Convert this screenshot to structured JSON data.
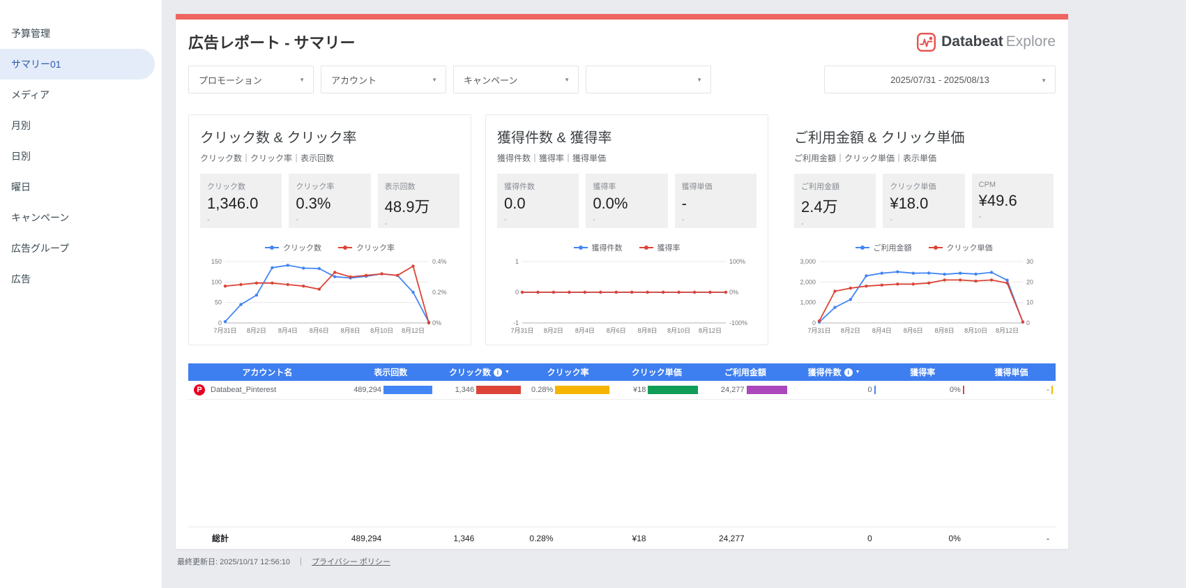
{
  "sidebar": {
    "items": [
      {
        "label": "予算管理",
        "selected": false
      },
      {
        "label": "サマリー01",
        "selected": true
      },
      {
        "label": "メディア",
        "selected": false
      },
      {
        "label": "月別",
        "selected": false
      },
      {
        "label": "日別",
        "selected": false
      },
      {
        "label": "曜日",
        "selected": false
      },
      {
        "label": "キャンペーン",
        "selected": false
      },
      {
        "label": "広告グループ",
        "selected": false
      },
      {
        "label": "広告",
        "selected": false
      }
    ]
  },
  "header": {
    "title": "広告レポート - サマリー",
    "brand_name": "Databeat",
    "brand_suffix": "Explore",
    "brand_color": "#e8504e"
  },
  "filters": {
    "dropdowns": [
      {
        "label": "プロモーション"
      },
      {
        "label": "アカウント"
      },
      {
        "label": "キャンペーン"
      },
      {
        "label": ""
      }
    ],
    "date_range": "2025/07/31 - 2025/08/13"
  },
  "cards": [
    {
      "title": "クリック数 & クリック率",
      "subtitle": "クリック数｜クリック率｜表示回数",
      "stats": [
        {
          "label": "クリック数",
          "value": "1,346.0",
          "delta": "-"
        },
        {
          "label": "クリック率",
          "value": "0.3%",
          "delta": "-"
        },
        {
          "label": "表示回数",
          "value": "48.9万",
          "delta": "-"
        }
      ]
    },
    {
      "title": "獲得件数 & 獲得率",
      "subtitle": "獲得件数｜獲得率｜獲得単価",
      "stats": [
        {
          "label": "獲得件数",
          "value": "0.0",
          "delta": "-"
        },
        {
          "label": "獲得率",
          "value": "0.0%",
          "delta": "-"
        },
        {
          "label": "獲得単価",
          "value": "-",
          "delta": "-"
        }
      ]
    },
    {
      "title": "ご利用金額 & クリック単価",
      "subtitle": "ご利用金額｜クリック単価｜表示単価",
      "stats": [
        {
          "label": "ご利用金額",
          "value": "2.4万",
          "delta": "-"
        },
        {
          "label": "クリック単価",
          "value": "¥18.0",
          "delta": "-"
        },
        {
          "label": "CPM",
          "value": "¥49.6",
          "delta": "-"
        }
      ]
    }
  ],
  "chart_data": [
    {
      "type": "line",
      "title": "クリック数 & クリック率",
      "x": [
        "7月31日",
        "8月1日",
        "8月2日",
        "8月3日",
        "8月4日",
        "8月5日",
        "8月6日",
        "8月7日",
        "8月8日",
        "8月9日",
        "8月10日",
        "8月11日",
        "8月12日",
        "8月13日"
      ],
      "x_label_every": 2,
      "left_axis": {
        "min": 0,
        "max": 150,
        "ticks": [
          "0",
          "50",
          "100",
          "150"
        ]
      },
      "right_axis": {
        "min": 0,
        "max": 0.4,
        "ticks": [
          "0%",
          "0.2%",
          "0.4%"
        ]
      },
      "series": [
        {
          "name": "クリック数",
          "axis": "left",
          "color": "#4285f4",
          "values": [
            3,
            45,
            68,
            135,
            141,
            134,
            133,
            113,
            110,
            114,
            120,
            116,
            75,
            2
          ]
        },
        {
          "name": "クリック率",
          "axis": "right",
          "color": "#db4437",
          "values": [
            0.24,
            0.25,
            0.26,
            0.26,
            0.25,
            0.24,
            0.22,
            0.33,
            0.3,
            0.31,
            0.32,
            0.31,
            0.37,
            0.0
          ]
        }
      ]
    },
    {
      "type": "line",
      "title": "獲得件数 & 獲得率",
      "x": [
        "7月31日",
        "8月1日",
        "8月2日",
        "8月3日",
        "8月4日",
        "8月5日",
        "8月6日",
        "8月7日",
        "8月8日",
        "8月9日",
        "8月10日",
        "8月11日",
        "8月12日",
        "8月13日"
      ],
      "x_label_every": 2,
      "left_axis": {
        "min": -1,
        "max": 1,
        "ticks": [
          "-1",
          "0",
          "1"
        ]
      },
      "right_axis": {
        "min": -100,
        "max": 100,
        "ticks": [
          "-100%",
          "0%",
          "100%"
        ]
      },
      "series": [
        {
          "name": "獲得件数",
          "axis": "left",
          "color": "#4285f4",
          "values": [
            0,
            0,
            0,
            0,
            0,
            0,
            0,
            0,
            0,
            0,
            0,
            0,
            0,
            0
          ]
        },
        {
          "name": "獲得率",
          "axis": "right",
          "color": "#db4437",
          "values": [
            0,
            0,
            0,
            0,
            0,
            0,
            0,
            0,
            0,
            0,
            0,
            0,
            0,
            0
          ]
        }
      ]
    },
    {
      "type": "line",
      "title": "ご利用金額 & クリック単価",
      "x": [
        "7月31日",
        "8月1日",
        "8月2日",
        "8月3日",
        "8月4日",
        "8月5日",
        "8月6日",
        "8月7日",
        "8月8日",
        "8月9日",
        "8月10日",
        "8月11日",
        "8月12日",
        "8月13日"
      ],
      "x_label_every": 2,
      "left_axis": {
        "min": 0,
        "max": 3000,
        "ticks": [
          "0",
          "1,000",
          "2,000",
          "3,000"
        ]
      },
      "right_axis": {
        "min": 0,
        "max": 30,
        "ticks": [
          "0",
          "10",
          "20",
          "30"
        ]
      },
      "series": [
        {
          "name": "ご利用金額",
          "axis": "left",
          "color": "#4285f4",
          "values": [
            40,
            760,
            1150,
            2300,
            2430,
            2500,
            2430,
            2440,
            2380,
            2430,
            2390,
            2470,
            2090,
            40
          ]
        },
        {
          "name": "クリック単価",
          "axis": "right",
          "color": "#db4437",
          "values": [
            1,
            15.5,
            17,
            18,
            18.5,
            19,
            19,
            19.5,
            21,
            21,
            20.5,
            21,
            19.5,
            0.5
          ]
        }
      ]
    }
  ],
  "table": {
    "columns": [
      {
        "label": "アカウント名"
      },
      {
        "label": "表示回数",
        "color": "#4285f4"
      },
      {
        "label": "クリック数",
        "color": "#db4437",
        "info": true,
        "sortable": true
      },
      {
        "label": "クリック率",
        "color": "#f4b400"
      },
      {
        "label": "クリック単価",
        "color": "#0f9d58"
      },
      {
        "label": "ご利用金額",
        "color": "#ab47bc"
      },
      {
        "label": "獲得件数",
        "color": "#4285f4",
        "info": true,
        "sortable": true
      },
      {
        "label": "獲得率",
        "color": "#db4437"
      },
      {
        "label": "獲得単価",
        "color": "#f4b400"
      }
    ],
    "rows": [
      {
        "icon": "pinterest",
        "account": "Databeat_Pinterest",
        "cells": [
          {
            "value": "489,294",
            "bar": 70
          },
          {
            "value": "1,346",
            "bar": 64
          },
          {
            "value": "0.28%",
            "bar": 78
          },
          {
            "value": "¥18",
            "bar": 72
          },
          {
            "value": "24,277",
            "bar": 58
          },
          {
            "value": "0",
            "bar": 2
          },
          {
            "value": "0%",
            "bar": 2
          },
          {
            "value": "-",
            "bar": 2
          }
        ]
      }
    ],
    "total_label": "総計",
    "totals": [
      "489,294",
      "1,346",
      "0.28%",
      "¥18",
      "24,277",
      "0",
      "0%",
      "-"
    ]
  },
  "footer": {
    "last_updated": "最終更新日: 2025/10/17 12:56:10",
    "separator": "｜",
    "privacy": "プライバシー ポリシー"
  }
}
